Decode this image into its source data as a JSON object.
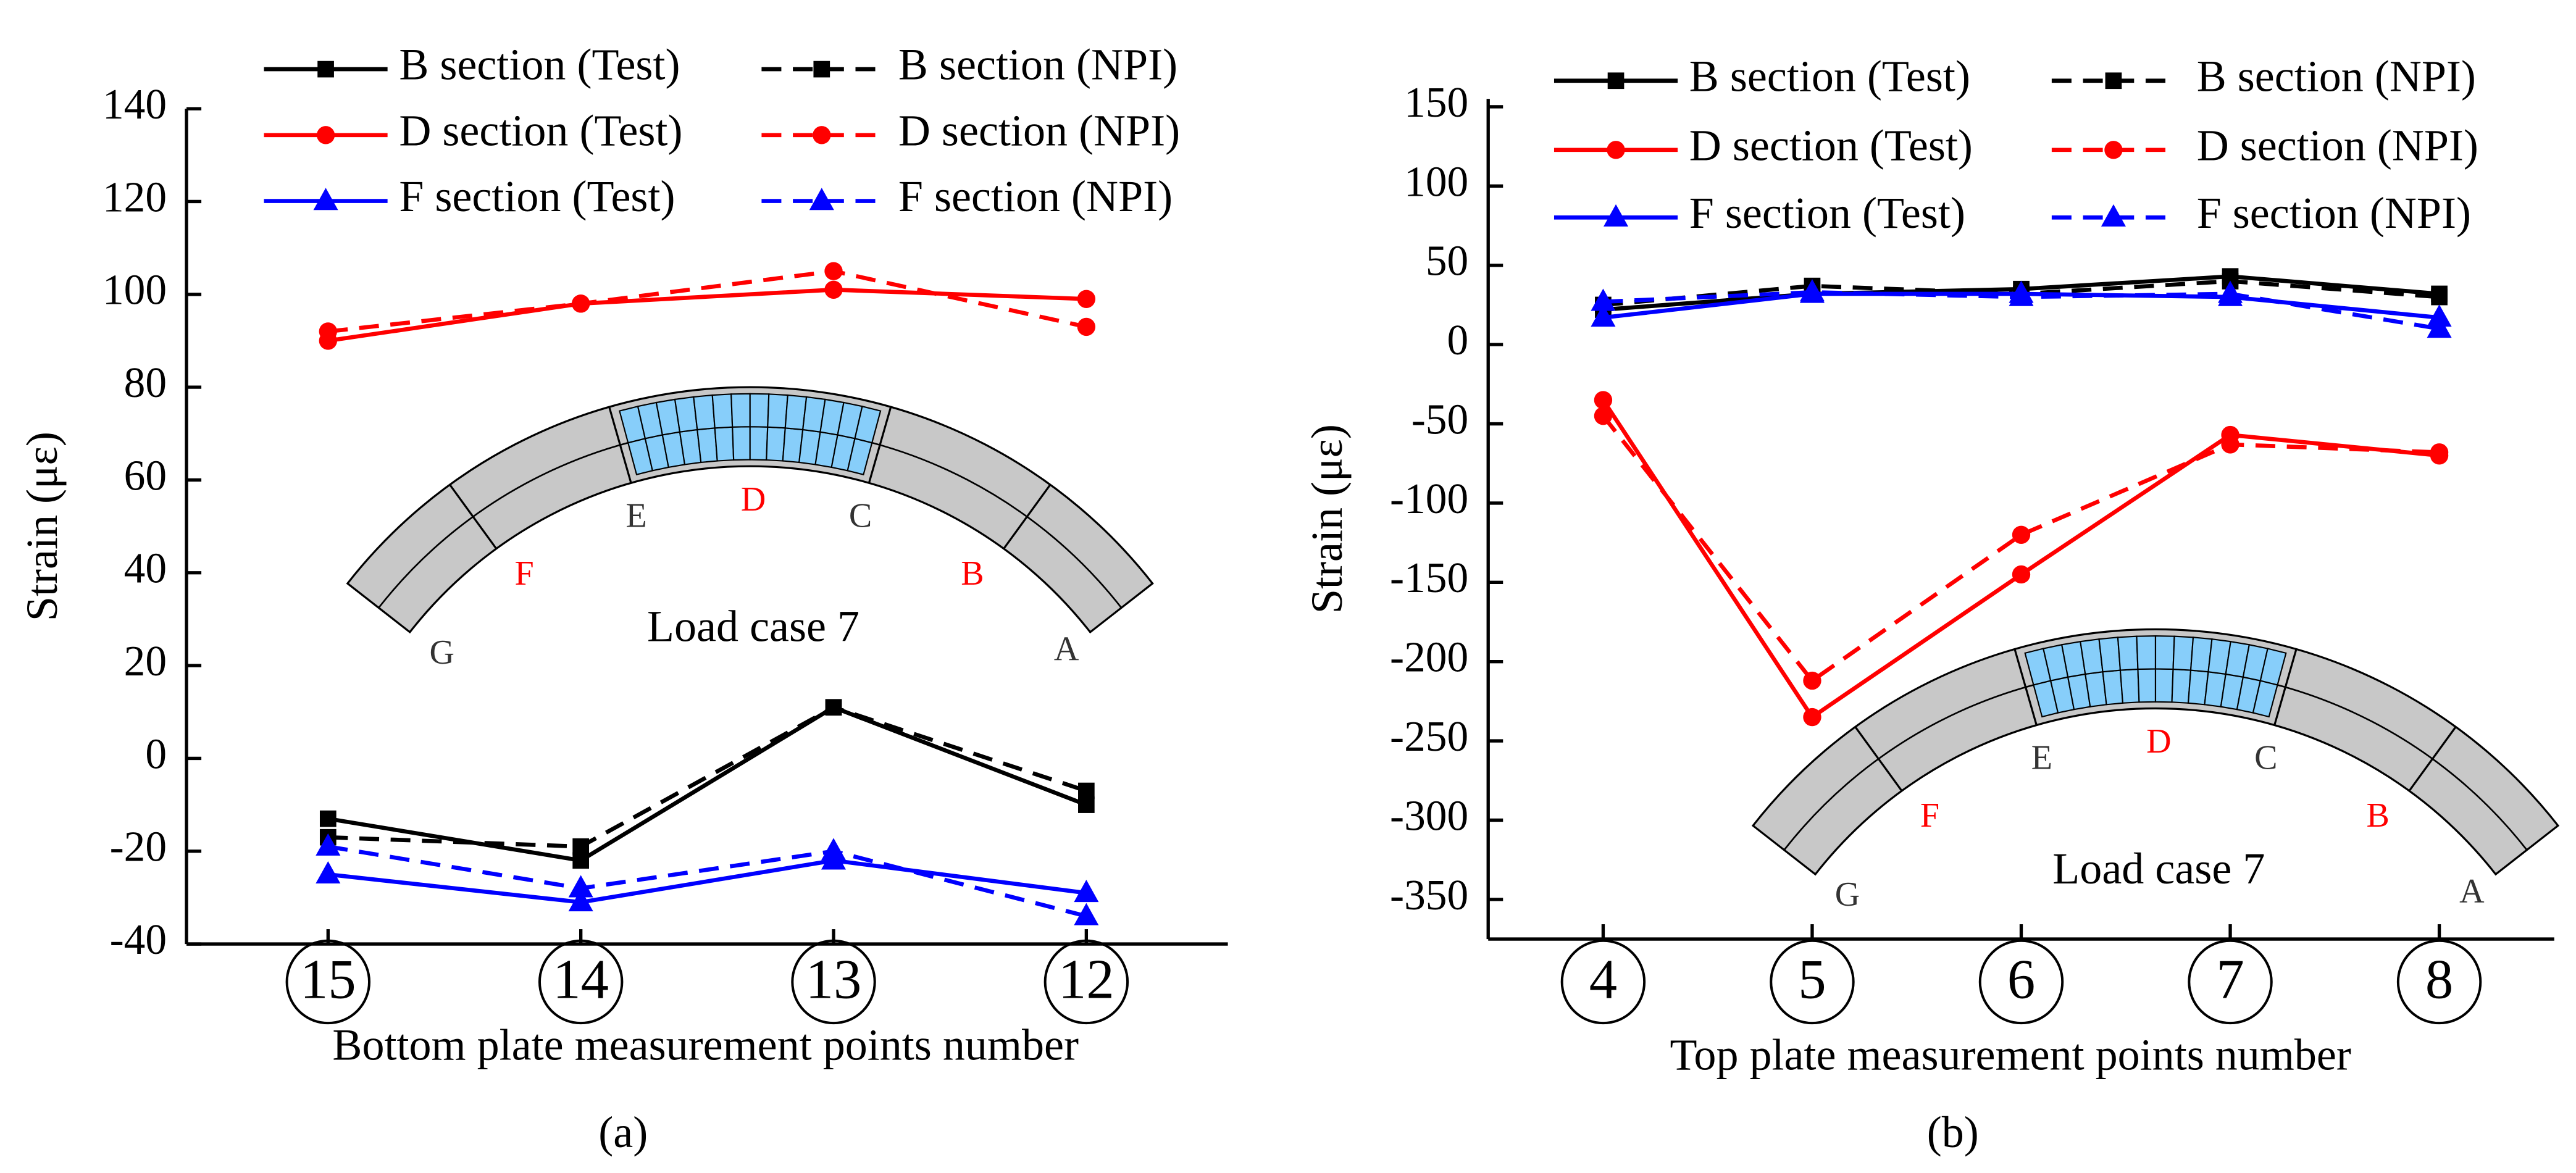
{
  "chart_data": [
    {
      "type": "line",
      "subcaption": "(a)",
      "x_label": "Bottom plate measurement points number",
      "y_label": "Strain (με)",
      "categories": [
        "15",
        "14",
        "13",
        "12"
      ],
      "ylim": [
        -40,
        140
      ],
      "yticks": [
        -40,
        -20,
        0,
        20,
        40,
        60,
        80,
        100,
        120,
        140
      ],
      "series": [
        {
          "name": "B section (Test)",
          "color": "#000000",
          "marker": "square",
          "dashed": false,
          "values": [
            -13,
            -22,
            11,
            -10
          ]
        },
        {
          "name": "B section (NPI)",
          "color": "#000000",
          "marker": "square",
          "dashed": true,
          "values": [
            -17,
            -19,
            11,
            -7
          ]
        },
        {
          "name": "D section (Test)",
          "color": "#ff0000",
          "marker": "circle",
          "dashed": false,
          "values": [
            90,
            98,
            101,
            99
          ]
        },
        {
          "name": "D section (NPI)",
          "color": "#ff0000",
          "marker": "circle",
          "dashed": true,
          "values": [
            92,
            98,
            105,
            93
          ]
        },
        {
          "name": "F section (Test)",
          "color": "#0000ff",
          "marker": "triangle",
          "dashed": false,
          "values": [
            -25,
            -31,
            -22,
            -29
          ]
        },
        {
          "name": "F section (NPI)",
          "color": "#0000ff",
          "marker": "triangle",
          "dashed": true,
          "values": [
            -19,
            -28,
            -20,
            -34
          ]
        }
      ],
      "inset": {
        "labels": [
          "G",
          "F",
          "E",
          "D",
          "C",
          "B",
          "A"
        ],
        "label_colors": [
          "#333333",
          "#ff0000",
          "#333333",
          "#ff0000",
          "#333333",
          "#ff0000",
          "#333333"
        ],
        "caption": "Load case 7"
      }
    },
    {
      "type": "line",
      "subcaption": "(b)",
      "x_label": "Top plate measurement points number",
      "y_label": "Strain (με)",
      "categories": [
        "4",
        "5",
        "6",
        "7",
        "8"
      ],
      "ylim": [
        -375,
        155
      ],
      "yticks": [
        -350,
        -300,
        -250,
        -200,
        -150,
        -100,
        -50,
        0,
        50,
        100,
        150
      ],
      "series": [
        {
          "name": "B section (Test)",
          "color": "#000000",
          "marker": "square",
          "dashed": false,
          "values": [
            22,
            32,
            35,
            43,
            32
          ]
        },
        {
          "name": "B section (NPI)",
          "color": "#000000",
          "marker": "square",
          "dashed": true,
          "values": [
            25,
            37,
            32,
            40,
            30
          ]
        },
        {
          "name": "D section (Test)",
          "color": "#ff0000",
          "marker": "circle",
          "dashed": false,
          "values": [
            -35,
            -235,
            -145,
            -57,
            -70
          ]
        },
        {
          "name": "D section (NPI)",
          "color": "#ff0000",
          "marker": "circle",
          "dashed": true,
          "values": [
            -45,
            -212,
            -120,
            -63,
            -68
          ]
        },
        {
          "name": "F section (Test)",
          "color": "#0000ff",
          "marker": "triangle",
          "dashed": false,
          "values": [
            17,
            32,
            32,
            30,
            17
          ]
        },
        {
          "name": "F section (NPI)",
          "color": "#0000ff",
          "marker": "triangle",
          "dashed": true,
          "values": [
            27,
            33,
            30,
            32,
            10
          ]
        }
      ],
      "inset": {
        "labels": [
          "G",
          "F",
          "E",
          "D",
          "C",
          "B",
          "A"
        ],
        "label_colors": [
          "#333333",
          "#ff0000",
          "#333333",
          "#ff0000",
          "#333333",
          "#ff0000",
          "#333333"
        ],
        "caption": "Load case 7"
      }
    }
  ]
}
